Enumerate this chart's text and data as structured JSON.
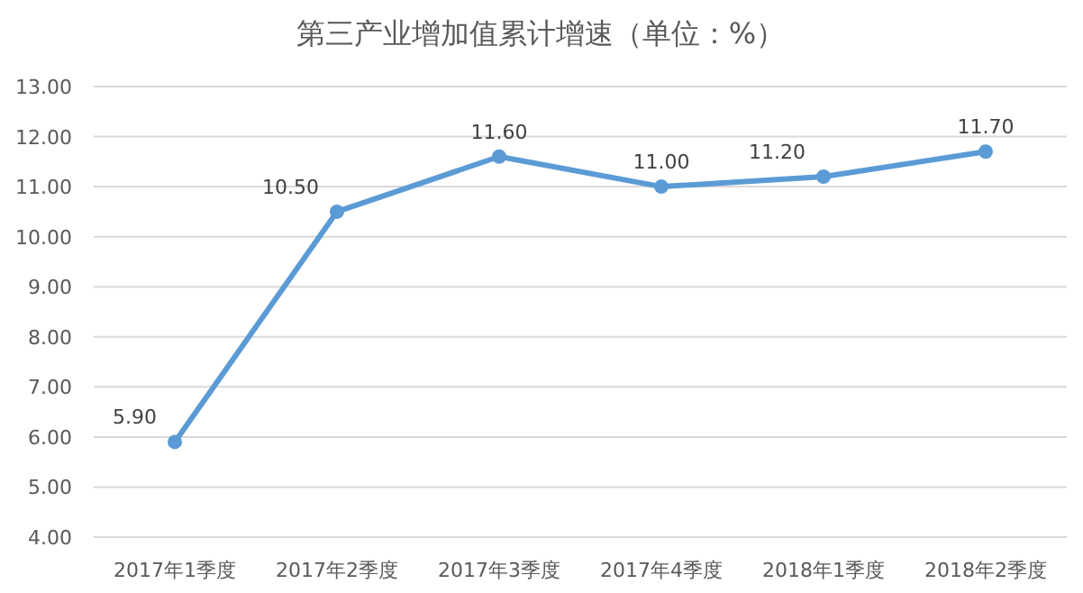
{
  "chart_data": {
    "type": "line",
    "title": "第三产业增加值累计增速（单位：%）",
    "categories": [
      "2017年1季度",
      "2017年2季度",
      "2017年3季度",
      "2017年4季度",
      "2018年1季度",
      "2018年2季度"
    ],
    "series": [
      {
        "color": "#5b9bd5",
        "values": [
          5.9,
          10.5,
          11.6,
          11.0,
          11.2,
          11.7
        ],
        "value_labels": [
          "5.90",
          "10.50",
          "11.60",
          "11.00",
          "11.20",
          "11.70"
        ]
      }
    ],
    "ylim": [
      4,
      13
    ],
    "yticks": [
      {
        "value": 4,
        "label": "4.00"
      },
      {
        "value": 5,
        "label": "5.00"
      },
      {
        "value": 6,
        "label": "6.00"
      },
      {
        "value": 7,
        "label": "7.00"
      },
      {
        "value": 8,
        "label": "8.00"
      },
      {
        "value": 9,
        "label": "9.00"
      },
      {
        "value": 10,
        "label": "10.00"
      },
      {
        "value": 11,
        "label": "11.00"
      },
      {
        "value": 12,
        "label": "12.00"
      },
      {
        "value": 13,
        "label": "13.00"
      }
    ],
    "grid": "y",
    "marker": "circle",
    "line_style": "solid"
  }
}
